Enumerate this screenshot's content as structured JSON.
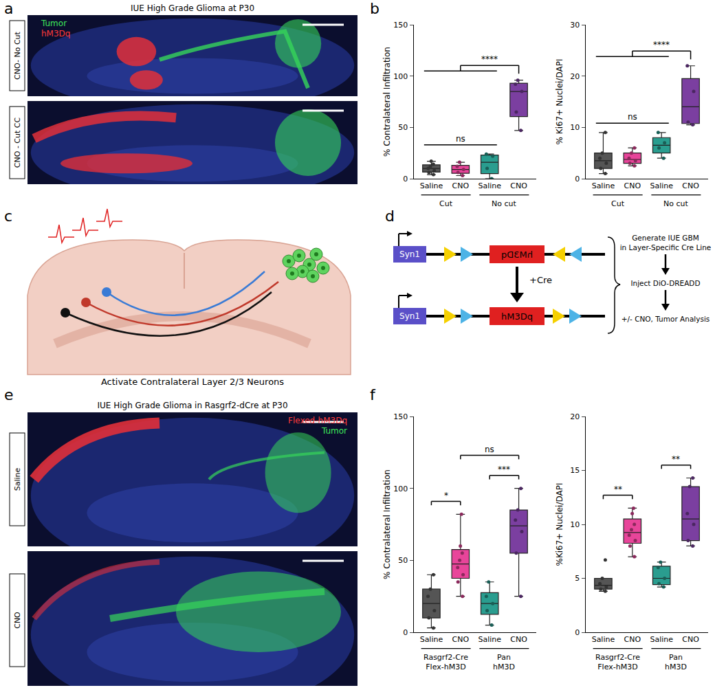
{
  "panels": {
    "a": {
      "letter": "a",
      "title": "IUE High Grade Glioma at P30",
      "legend": [
        {
          "text": "Tumor",
          "color": "#3ee85a"
        },
        {
          "text": "hM3Dq",
          "color": "#ff3a3a"
        }
      ],
      "rows": [
        "CNO- No Cut",
        "CNO - Cut CC"
      ]
    },
    "b": {
      "letter": "b"
    },
    "c": {
      "letter": "c",
      "caption": "Activate Contralateral Layer 2/3 Neurons"
    },
    "d": {
      "letter": "d",
      "promoter": "Syn1",
      "gene": "hM3Dq",
      "cre": "+Cre",
      "steps": [
        [
          "Generate IUE GBM",
          "in Layer-Specific Cre Line"
        ],
        [
          "Inject DiO-DREADD"
        ],
        [
          "+/- CNO, Tumor Analysis"
        ]
      ]
    },
    "e": {
      "letter": "e",
      "title": "IUE High Grade Glioma in Rasgrf2-dCre at P30",
      "legend": [
        {
          "text": "Flexed-hM3Dq",
          "color": "#ff3a3a"
        },
        {
          "text": "Tumor",
          "color": "#3ee85a"
        }
      ],
      "rows": [
        "Saline",
        "CNO"
      ]
    },
    "f": {
      "letter": "f"
    }
  },
  "chart_data": [
    {
      "type": "box",
      "panel": "b",
      "ylabel": "% Contralateral Infiltration",
      "categories": [
        "Saline",
        "CNO",
        "Saline",
        "CNO"
      ],
      "groups": [
        {
          "label": [
            "Cut"
          ],
          "members": [
            0,
            1
          ]
        },
        {
          "label": [
            "No cut"
          ],
          "members": [
            2,
            3
          ]
        }
      ],
      "colors": [
        "#555555",
        "#e8459a",
        "#2a9d8f",
        "#7b3fa0"
      ],
      "values": [
        [
          4,
          6,
          8,
          10,
          12,
          14,
          17
        ],
        [
          3,
          6,
          9,
          12,
          16
        ],
        [
          0,
          10,
          22,
          24
        ],
        [
          47,
          65,
          85,
          92,
          96
        ]
      ],
      "ylim": [
        0,
        150
      ],
      "yticks": [
        0,
        50,
        100,
        150
      ],
      "comparisons": [
        {
          "left": [
            0,
            2
          ],
          "text": "ns"
        },
        {
          "left": [
            0,
            2
          ],
          "right": [
            3,
            3
          ],
          "text": "****"
        }
      ]
    },
    {
      "type": "box",
      "panel": "b",
      "ylabel": "% Ki67+ Nuclei/DAPI",
      "categories": [
        "Saline",
        "CNO",
        "Saline",
        "CNO"
      ],
      "groups": [
        {
          "label": [
            "Cut"
          ],
          "members": [
            0,
            1
          ]
        },
        {
          "label": [
            "No cut"
          ],
          "members": [
            2,
            3
          ]
        }
      ],
      "colors": [
        "#555555",
        "#e8459a",
        "#2a9d8f",
        "#7b3fa0"
      ],
      "values": [
        [
          1,
          2,
          3,
          4,
          5,
          9
        ],
        [
          2.5,
          3,
          3.5,
          4,
          5,
          6
        ],
        [
          4,
          6,
          7,
          9
        ],
        [
          10.5,
          11,
          17,
          22
        ]
      ],
      "ylim": [
        0,
        30
      ],
      "yticks": [
        0,
        10,
        20,
        30
      ],
      "comparisons": [
        {
          "left": [
            0,
            2
          ],
          "text": "ns"
        },
        {
          "left": [
            0,
            2
          ],
          "right": [
            3,
            3
          ],
          "text": "****"
        }
      ]
    },
    {
      "type": "box",
      "panel": "f",
      "ylabel": "% Contralateral Infiltration",
      "categories": [
        "Saline",
        "CNO",
        "Saline",
        "CNO"
      ],
      "groups": [
        {
          "label": [
            "Rasgrf2-Cre",
            "Flex-hM3D"
          ],
          "members": [
            0,
            1
          ]
        },
        {
          "label": [
            "Pan",
            "hM3D"
          ],
          "members": [
            2,
            3
          ]
        }
      ],
      "colors": [
        "#555555",
        "#e8459a",
        "#2a9d8f",
        "#7b3fa0"
      ],
      "values": [
        [
          3,
          10,
          15,
          25,
          30,
          40
        ],
        [
          25,
          35,
          40,
          45,
          50,
          55,
          60,
          82
        ],
        [
          5,
          15,
          20,
          25,
          35
        ],
        [
          25,
          55,
          70,
          78,
          85,
          100
        ]
      ],
      "ylim": [
        0,
        150
      ],
      "yticks": [
        0,
        50,
        100,
        150
      ],
      "comparisons": [
        {
          "left": [
            0,
            0
          ],
          "right": [
            1,
            1
          ],
          "text": "*"
        },
        {
          "left": [
            2,
            2
          ],
          "right": [
            3,
            3
          ],
          "text": "***"
        },
        {
          "left": [
            1,
            1
          ],
          "right": [
            3,
            3
          ],
          "text": "ns"
        }
      ]
    },
    {
      "type": "box",
      "panel": "f",
      "ylabel": "%Ki67+ Nuclei/DAPI",
      "categories": [
        "Saline",
        "CNO",
        "Saline",
        "CNO"
      ],
      "groups": [
        {
          "label": [
            "Rasgrf2-Cre",
            "Flex-hM3D"
          ],
          "members": [
            0,
            1
          ]
        },
        {
          "label": [
            "Pan",
            "hM3D"
          ],
          "members": [
            2,
            3
          ]
        }
      ],
      "colors": [
        "#555555",
        "#e8459a",
        "#2a9d8f",
        "#7b3fa0"
      ],
      "values": [
        [
          3.8,
          4,
          4.2,
          4.5,
          5,
          6.7
        ],
        [
          7,
          8,
          8.5,
          9,
          9.5,
          10,
          11,
          11.5
        ],
        [
          4.2,
          4.5,
          5,
          6,
          6.5
        ],
        [
          8,
          8.5,
          10,
          11,
          13.5,
          14.3
        ]
      ],
      "ylim": [
        0,
        20
      ],
      "yticks": [
        0,
        5,
        10,
        15,
        20
      ],
      "comparisons": [
        {
          "left": [
            0,
            0
          ],
          "right": [
            1,
            1
          ],
          "text": "**"
        },
        {
          "left": [
            2,
            2
          ],
          "right": [
            3,
            3
          ],
          "text": "**"
        }
      ]
    }
  ]
}
